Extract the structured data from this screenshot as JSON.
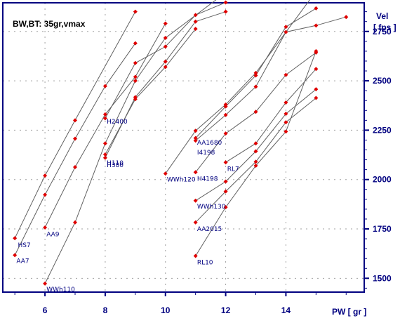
{
  "chart_data": {
    "type": "line",
    "title": "BW,BT:  35gr,vmax",
    "xlabel": "PW  [ gr ]",
    "ylabel_line1": "Vel",
    "ylabel_line2": "[ fps ]",
    "xlim": [
      4.6,
      16.6
    ],
    "ylim": [
      1430,
      2895
    ],
    "x_ticks": [
      6,
      8,
      10,
      12,
      14
    ],
    "y_ticks": [
      1500,
      1750,
      2000,
      2250,
      2500,
      2750
    ],
    "grid": true,
    "legend": "none",
    "colors": {
      "marker": "#e00000",
      "line": "#606060",
      "axis": "#000080",
      "grid": "#a0a0a0"
    },
    "series": [
      {
        "name": "HS7",
        "label_x": 5.1,
        "label_y": 1657,
        "points": [
          [
            5,
            1703
          ],
          [
            6,
            2020
          ],
          [
            7,
            2300
          ],
          [
            9,
            2850
          ]
        ]
      },
      {
        "name": "AA7",
        "label_x": 5.05,
        "label_y": 1577,
        "points": [
          [
            5,
            1617
          ],
          [
            6,
            1923
          ],
          [
            7,
            2207
          ],
          [
            8,
            2473
          ],
          [
            9,
            2690
          ]
        ]
      },
      {
        "name": "AA9",
        "label_x": 6.05,
        "label_y": 1713,
        "points": [
          [
            6,
            1757
          ],
          [
            7,
            2063
          ],
          [
            8,
            2330
          ],
          [
            9,
            2520
          ],
          [
            10,
            2790
          ]
        ]
      },
      {
        "name": "WWh110",
        "label_x": 6.05,
        "label_y": 1433,
        "points": [
          [
            6,
            1473
          ],
          [
            7,
            1783
          ],
          [
            8,
            2183
          ],
          [
            9,
            2500
          ],
          [
            10,
            2717
          ],
          [
            12,
            2947
          ]
        ]
      },
      {
        "name": "H2400",
        "label_x": 8.05,
        "label_y": 2283,
        "points": [
          [
            8,
            2310
          ],
          [
            9,
            2590
          ],
          [
            10,
            2673
          ],
          [
            11,
            2833
          ],
          [
            12,
            2897
          ]
        ]
      },
      {
        "name": "H110",
        "label_x": 8.05,
        "label_y": 2073,
        "points": [
          [
            8,
            2110
          ],
          [
            9,
            2417
          ],
          [
            10,
            2597
          ],
          [
            11,
            2800
          ],
          [
            12,
            2850
          ]
        ]
      },
      {
        "name": "H380",
        "label_x": 8.05,
        "label_y": 2063,
        "points": [
          [
            8,
            2127
          ],
          [
            9,
            2407
          ],
          [
            10,
            2570
          ],
          [
            11,
            2763
          ]
        ]
      },
      {
        "name": "WWh120",
        "label_x": 10.05,
        "label_y": 1990,
        "points": [
          [
            10,
            2030
          ],
          [
            11,
            2247
          ],
          [
            12,
            2380
          ],
          [
            13,
            2540
          ],
          [
            15,
            2953
          ]
        ]
      },
      {
        "name": "AA1680",
        "label_x": 11.05,
        "label_y": 2177,
        "points": [
          [
            11,
            2210
          ],
          [
            12,
            2370
          ],
          [
            13,
            2527
          ],
          [
            14,
            2773
          ],
          [
            15,
            2867
          ]
        ]
      },
      {
        "name": "I4198",
        "label_x": 11.05,
        "label_y": 2127,
        "points": [
          [
            11,
            2197
          ],
          [
            12,
            2327
          ],
          [
            13,
            2470
          ],
          [
            14,
            2747
          ],
          [
            15,
            2780
          ],
          [
            16,
            2823
          ]
        ]
      },
      {
        "name": "H4198",
        "label_x": 11.05,
        "label_y": 1993,
        "points": [
          [
            11,
            2037
          ],
          [
            12,
            2233
          ],
          [
            13,
            2343
          ],
          [
            14,
            2530
          ],
          [
            15,
            2643
          ]
        ]
      },
      {
        "name": "RL7",
        "label_x": 12.05,
        "label_y": 2043,
        "points": [
          [
            12,
            2087
          ],
          [
            13,
            2183
          ],
          [
            14,
            2390
          ],
          [
            15,
            2560
          ]
        ]
      },
      {
        "name": "WWh130",
        "label_x": 11.05,
        "label_y": 1853,
        "points": [
          [
            11,
            1893
          ],
          [
            12,
            1990
          ],
          [
            13,
            2143
          ],
          [
            14,
            2333
          ],
          [
            15,
            2457
          ]
        ]
      },
      {
        "name": "AA2015",
        "label_x": 11.05,
        "label_y": 1740,
        "points": [
          [
            11,
            1783
          ],
          [
            12,
            1940
          ],
          [
            13,
            2090
          ],
          [
            14,
            2290
          ],
          [
            15,
            2413
          ]
        ]
      },
      {
        "name": "RL10",
        "label_x": 11.05,
        "label_y": 1570,
        "points": [
          [
            11,
            1613
          ],
          [
            12,
            1860
          ],
          [
            13,
            2070
          ],
          [
            14,
            2243
          ],
          [
            15,
            2650
          ]
        ]
      }
    ]
  }
}
